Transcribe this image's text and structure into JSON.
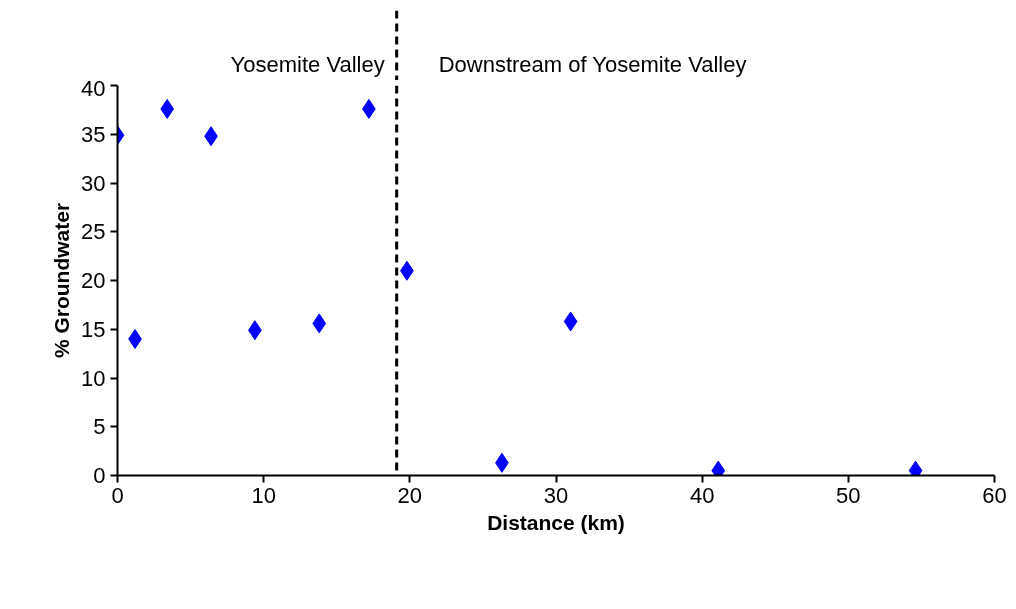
{
  "chart_data": {
    "type": "scatter",
    "xlabel": "Distance (km)",
    "ylabel": "% Groundwater",
    "xlim": [
      0,
      60
    ],
    "xticks": [
      0,
      10,
      20,
      30,
      40,
      50,
      60
    ],
    "ylim": [
      0,
      40
    ],
    "yticks": [
      0,
      5,
      10,
      15,
      20,
      25,
      30,
      35,
      40
    ],
    "series": [
      {
        "color": "#0000ff",
        "x": [
          0,
          1.2,
          3.4,
          6.4,
          9.4,
          13.8,
          17.2,
          19.8,
          26.3,
          31.0,
          41.1,
          54.6
        ],
        "values": [
          34.9,
          14.0,
          37.6,
          34.8,
          14.9,
          15.6,
          37.6,
          21.0,
          1.3,
          15.8,
          0.5,
          0.5
        ]
      }
    ],
    "marker": "diamond",
    "grid": false,
    "ref_lines": [
      {
        "axis": "x",
        "value": 19.1,
        "line_style": "dashed",
        "color": "#000000"
      }
    ],
    "annotations": [
      "Yosemite Valley",
      "Downstream of Yosemite Valley"
    ]
  }
}
